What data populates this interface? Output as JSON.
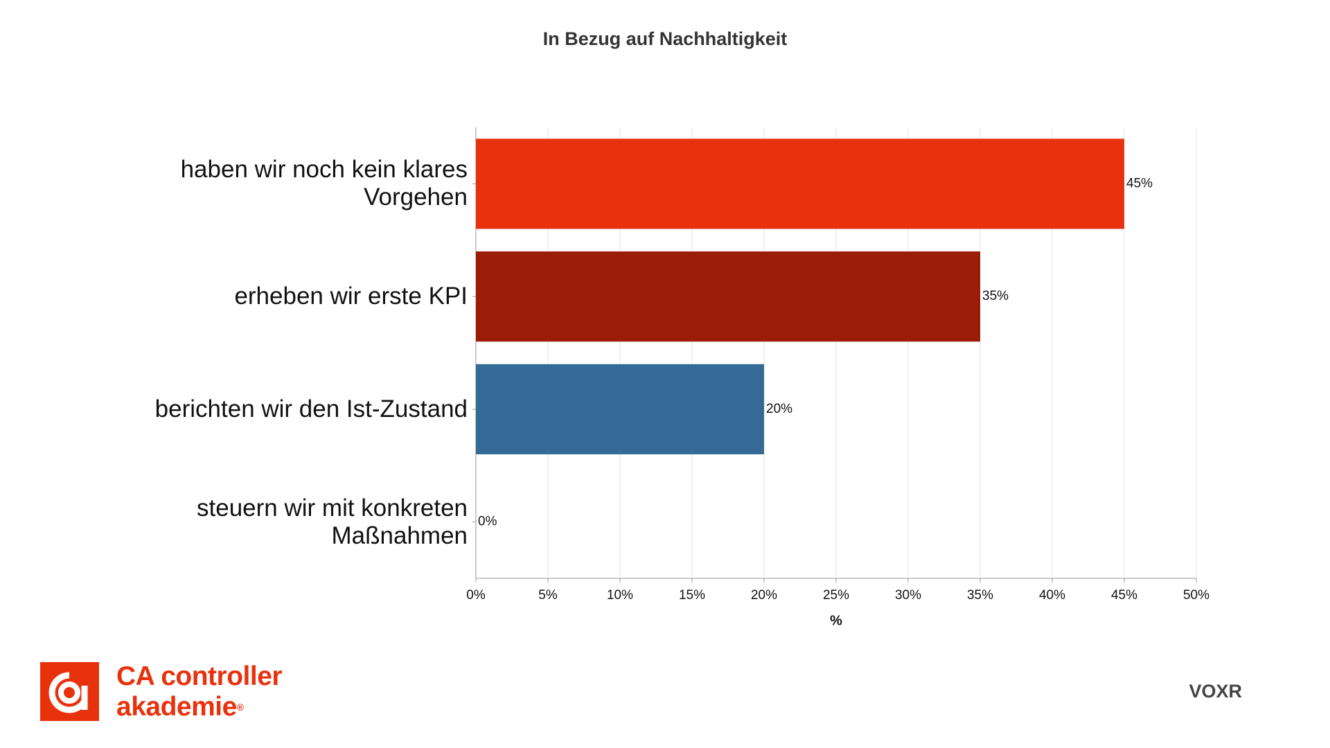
{
  "chart_data": {
    "type": "bar",
    "orientation": "horizontal",
    "title": "In Bezug auf Nachhaltigkeit",
    "categories": [
      "haben wir noch kein klares Vorgehen",
      "erheben wir erste KPI",
      "berichten wir den Ist-Zustand",
      "steuern wir mit konkreten Maßnahmen"
    ],
    "values": [
      45,
      35,
      20,
      0
    ],
    "value_labels": [
      "45%",
      "35%",
      "20%",
      "0%"
    ],
    "colors": [
      "#e8320e",
      "#9a1c09",
      "#356a96",
      "#356a96"
    ],
    "xlabel": "%",
    "xlim": [
      0,
      50
    ],
    "xticks": [
      {
        "value": 0,
        "label": "0%"
      },
      {
        "value": 5,
        "label": "5%"
      },
      {
        "value": 10,
        "label": "10%"
      },
      {
        "value": 15,
        "label": "15%"
      },
      {
        "value": 20,
        "label": "20%"
      },
      {
        "value": 25,
        "label": "25%"
      },
      {
        "value": 30,
        "label": "30%"
      },
      {
        "value": 35,
        "label": "35%"
      },
      {
        "value": 40,
        "label": "40%"
      },
      {
        "value": 45,
        "label": "45%"
      },
      {
        "value": 50,
        "label": "50%"
      }
    ],
    "grid": true
  },
  "branding": {
    "logo_line1": "CA controller",
    "logo_line2": "akademie",
    "logo_mark": "®",
    "vendor": "VOXR"
  }
}
